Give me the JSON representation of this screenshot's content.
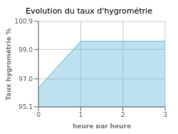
{
  "chart_data": {
    "type": "area",
    "title": "Evolution du taux d'hygrométrie",
    "xlabel": "heure par heure",
    "ylabel": "Taux hygrométrie %",
    "x": [
      0,
      1,
      2,
      3
    ],
    "values": [
      96.4,
      99.55,
      99.55,
      99.55
    ],
    "color": "#5ab4d6",
    "xlim": [
      0,
      3
    ],
    "ylim": [
      95.1,
      100.9
    ],
    "xticks": [
      0,
      1,
      2,
      3
    ],
    "yticks": [
      95.1,
      {
        "value": 97,
        "label": "97.0"
      },
      {
        "value": 99,
        "label": "99.0"
      },
      100.9
    ],
    "grid": true
  }
}
